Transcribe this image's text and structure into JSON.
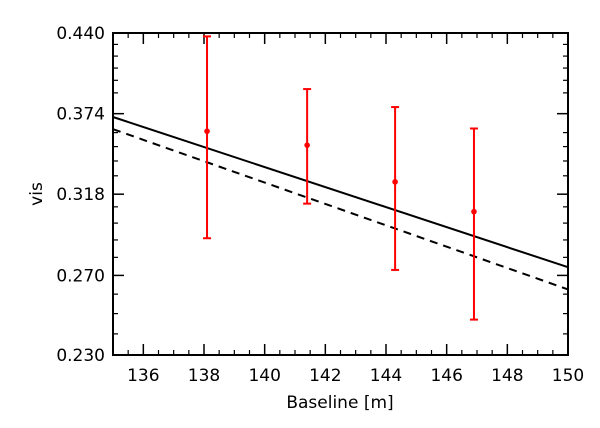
{
  "chart_data": {
    "type": "scatter",
    "title": "",
    "xlabel": "Baseline [m]",
    "ylabel": "vis",
    "xlim": [
      135,
      150
    ],
    "ylim": [
      0.23,
      0.44
    ],
    "y_scale": "log",
    "x_ticks": [
      136,
      138,
      140,
      142,
      144,
      146,
      148,
      150
    ],
    "x_tick_labels": [
      "136",
      "138",
      "140",
      "142",
      "144",
      "146",
      "148",
      "150"
    ],
    "y_ticks": [
      0.23,
      0.27,
      0.318,
      0.374,
      0.44
    ],
    "y_tick_labels": [
      "0.230",
      "0.270",
      "0.318",
      "0.374",
      "0.440"
    ],
    "grid": false,
    "series": [
      {
        "type": "errorbar",
        "color": "#ff0000",
        "points": [
          {
            "x": 138.1,
            "y": 0.361,
            "yerr_low": 0.291,
            "yerr_high": 0.437
          },
          {
            "x": 141.4,
            "y": 0.351,
            "yerr_low": 0.312,
            "yerr_high": 0.393
          },
          {
            "x": 144.3,
            "y": 0.326,
            "yerr_low": 0.273,
            "yerr_high": 0.379
          },
          {
            "x": 146.9,
            "y": 0.307,
            "yerr_low": 0.247,
            "yerr_high": 0.363
          }
        ]
      },
      {
        "type": "line",
        "style": "solid",
        "color": "#000000",
        "x": [
          135,
          150
        ],
        "y": [
          0.3715,
          0.2745
        ]
      },
      {
        "type": "line",
        "style": "dashed",
        "color": "#000000",
        "x": [
          135,
          150
        ],
        "y": [
          0.3625,
          0.2625
        ]
      }
    ]
  }
}
